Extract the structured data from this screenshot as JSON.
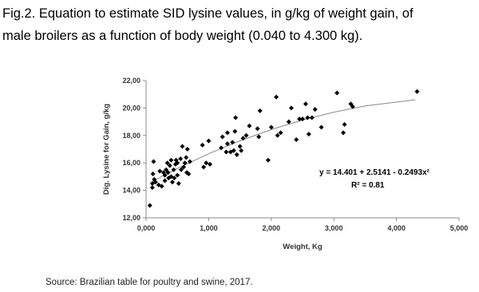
{
  "chart_data": {
    "type": "scatter",
    "title": [
      "Fig.2. Equation to estimate SID lysine values, in g/kg of weight gain, of",
      "male broilers as a function of body weight (0.040 to 4.300 kg)."
    ],
    "x_label": "Weight, Kg",
    "y_label": "Dig. Lysine for Gain, g/kg",
    "equation": "y = 14.401 + 2.5141 - 0.2493x²",
    "r_squared": "R² = 0.81",
    "source": "Source: Brazilian table for poultry and swine, 2017.",
    "color": "#000000",
    "xlim": [
      0,
      5
    ],
    "ylim": [
      12,
      22
    ],
    "xticks": [
      {
        "value": 0,
        "label": "0,000"
      },
      {
        "value": 1,
        "label": "1,000"
      },
      {
        "value": 2,
        "label": "2,000"
      },
      {
        "value": 3,
        "label": "3,000"
      },
      {
        "value": 4,
        "label": "4,000"
      },
      {
        "value": 5,
        "label": "5,000"
      }
    ],
    "yticks": [
      {
        "value": 12,
        "label": "12,00"
      },
      {
        "value": 14,
        "label": "14,00"
      },
      {
        "value": 16,
        "label": "16,00"
      },
      {
        "value": 18,
        "label": "18,00"
      },
      {
        "value": 20,
        "label": "20,00"
      },
      {
        "value": 22,
        "label": "22,00"
      }
    ],
    "x": [
      0.06,
      0.1,
      0.1,
      0.11,
      0.12,
      0.13,
      0.15,
      0.2,
      0.22,
      0.25,
      0.28,
      0.3,
      0.3,
      0.32,
      0.34,
      0.35,
      0.36,
      0.38,
      0.4,
      0.4,
      0.42,
      0.44,
      0.45,
      0.47,
      0.48,
      0.5,
      0.5,
      0.52,
      0.55,
      0.56,
      0.58,
      0.6,
      0.62,
      0.64,
      0.65,
      0.66,
      0.68,
      0.7,
      0.9,
      0.92,
      0.96,
      1.0,
      1.02,
      1.2,
      1.22,
      1.28,
      1.3,
      1.3,
      1.35,
      1.38,
      1.4,
      1.42,
      1.43,
      1.45,
      1.5,
      1.52,
      1.55,
      1.6,
      1.65,
      1.78,
      1.8,
      1.82,
      1.95,
      2.0,
      2.08,
      2.1,
      2.15,
      2.28,
      2.32,
      2.4,
      2.45,
      2.5,
      2.55,
      2.58,
      2.6,
      2.65,
      2.7,
      2.8,
      3.05,
      3.15,
      3.17,
      3.27,
      3.3,
      4.33
    ],
    "values": [
      12.9,
      14.2,
      14.5,
      15.2,
      16.1,
      14.8,
      14.6,
      14.4,
      15.4,
      14.3,
      15.3,
      15.1,
      14.7,
      15.5,
      16.0,
      15.3,
      14.9,
      15.8,
      16.2,
      15.0,
      14.6,
      15.5,
      14.9,
      15.9,
      16.2,
      15.1,
      16.0,
      14.5,
      16.3,
      15.5,
      17.2,
      15.7,
      16.0,
      16.4,
      15.3,
      17.0,
      15.2,
      16.1,
      17.3,
      15.7,
      16.0,
      17.6,
      15.9,
      17.1,
      17.9,
      16.8,
      18.2,
      17.4,
      16.8,
      17.5,
      16.9,
      18.3,
      19.3,
      16.6,
      17.2,
      16.9,
      17.8,
      18.0,
      18.7,
      18.5,
      17.9,
      19.8,
      16.2,
      18.6,
      20.8,
      18.0,
      18.2,
      19.0,
      20.0,
      17.7,
      19.2,
      19.2,
      20.3,
      19.3,
      18.1,
      19.3,
      19.9,
      18.6,
      21.1,
      18.2,
      18.8,
      20.3,
      20.1,
      21.2
    ],
    "trendline": {
      "x": [
        0.1,
        0.5,
        1,
        1.5,
        2,
        2.5,
        3,
        3.5,
        4.3
      ],
      "values": [
        14.65,
        15.6,
        16.67,
        17.61,
        18.43,
        19.13,
        19.7,
        20.15,
        20.6
      ],
      "color": "#888888"
    }
  }
}
